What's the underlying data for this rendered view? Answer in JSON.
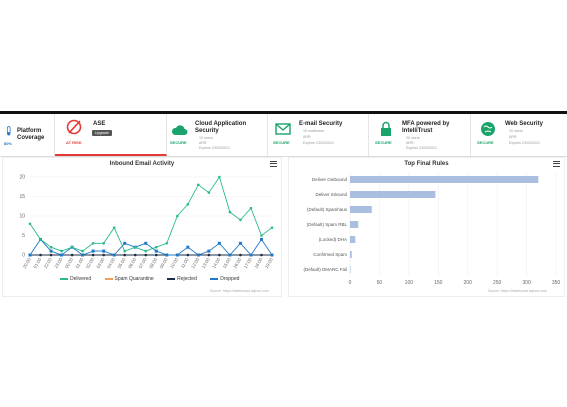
{
  "tiles": [
    {
      "title": "Platform\nCoverage",
      "percent": "80%"
    },
    {
      "title": "ASE",
      "status": "AT RISK",
      "badge": "Upgrade"
    },
    {
      "title": "Cloud Application\nSecurity",
      "status": "SECURE",
      "lines": [
        "10 users",
        "ARR",
        "Expires 23/03/2021"
      ]
    },
    {
      "title": "E-mail Security",
      "status": "SECURE",
      "lines": [
        "15 mailboxes",
        "ARR",
        "Expires 23/03/2021"
      ]
    },
    {
      "title": "MFA powered by\nIntelliTrust",
      "status": "SECURE",
      "lines": [
        "20 users",
        "ARR",
        "Expires 23/03/2021"
      ]
    },
    {
      "title": "Web Security",
      "status": "SECURE",
      "lines": [
        "10 users",
        "ARR",
        "Expires 23/03/2021"
      ]
    }
  ],
  "colors": {
    "green": "#1aa36a",
    "red": "#e53935",
    "delivered": "#2bbb8a",
    "spam": "#f0a05a",
    "rejected": "#1b2f4a",
    "dropped": "#1f78c8",
    "bar": "#aabfdf"
  },
  "inbound": {
    "title": "Inbound Email Activity",
    "source": "Source: https://dashboard.layhoo.com",
    "legend": [
      "Delivered",
      "Spam Quarantine",
      "Rejected",
      "Dropped"
    ]
  },
  "topRules": {
    "title": "Top Final Rules",
    "source": "Source: https://dashboard.layhoo.com"
  },
  "chart_data": [
    {
      "type": "line",
      "title": "Inbound Email Activity",
      "x": [
        "20:00",
        "01:00",
        "22:00",
        "23:00",
        "00:00",
        "01:00",
        "02:00",
        "03:00",
        "04:00",
        "05:00",
        "06:00",
        "07:00",
        "08:00",
        "09:00",
        "10:00",
        "11:00",
        "12:00",
        "13:00",
        "14:00",
        "15:00",
        "16:00",
        "17:00",
        "18:00",
        "19:00"
      ],
      "ylim": [
        0,
        20
      ],
      "yticks": [
        0,
        5,
        10,
        15,
        20
      ],
      "series": [
        {
          "name": "Delivered",
          "values": [
            8,
            4,
            2,
            1,
            2,
            1,
            3,
            3,
            7,
            1,
            2,
            1,
            2,
            3,
            10,
            13,
            18,
            16,
            20,
            11,
            9,
            12,
            5,
            7
          ]
        },
        {
          "name": "Spam Quarantine",
          "values": [
            0,
            0,
            0,
            0,
            0,
            0,
            0,
            0,
            0,
            0,
            0,
            0,
            0,
            0,
            0,
            0,
            0,
            0,
            0,
            0,
            0,
            0,
            0,
            0
          ]
        },
        {
          "name": "Rejected",
          "values": [
            0,
            0,
            0,
            0,
            0,
            0,
            0,
            0,
            0,
            0,
            0,
            0,
            0,
            0,
            0,
            0,
            0,
            0,
            0,
            0,
            0,
            0,
            0,
            0
          ]
        },
        {
          "name": "Dropped",
          "values": [
            0,
            4,
            1,
            0,
            2,
            0,
            1,
            1,
            0,
            3,
            2,
            3,
            1,
            0,
            0,
            2,
            0,
            1,
            3,
            0,
            3,
            0,
            4,
            0
          ]
        }
      ]
    },
    {
      "type": "bar",
      "title": "Top Final Rules",
      "categories": [
        "Deliver Outbound",
        "Deliver Inbound",
        "(Default) Spamhaus",
        "(Default) Spam RBL",
        "(Locked) DHA",
        "Confirmed Spam",
        "(Default) DMARC Fail"
      ],
      "values": [
        320,
        145,
        37,
        14,
        9,
        3,
        1
      ],
      "xlim": [
        0,
        350
      ],
      "xticks": [
        0,
        50,
        100,
        150,
        200,
        250,
        300,
        350
      ]
    }
  ]
}
